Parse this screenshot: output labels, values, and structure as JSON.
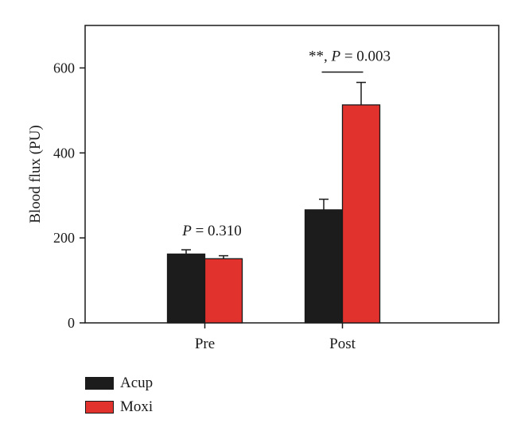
{
  "chart_data": {
    "type": "bar",
    "categories": [
      "Pre",
      "Post"
    ],
    "series": [
      {
        "name": "Acup",
        "values": [
          162,
          266
        ],
        "errors": [
          10,
          25
        ],
        "color": "#1c1c1c"
      },
      {
        "name": "Moxi",
        "values": [
          151,
          513
        ],
        "errors": [
          7,
          53
        ],
        "color": "#e1322e"
      }
    ],
    "ylabel": "Blood flux (PU)",
    "xlabel": "",
    "ylim": [
      0,
      700
    ],
    "yticks": [
      0,
      200,
      400,
      600
    ],
    "grid": false,
    "legend_position": "bottom-left",
    "annotations": [
      {
        "category": "Pre",
        "prefix": "",
        "p_symbol": "P",
        "rest": " = 0.310",
        "bracket": false
      },
      {
        "category": "Post",
        "prefix": "**, ",
        "p_symbol": "P",
        "rest": " = 0.003",
        "bracket": true
      }
    ]
  }
}
